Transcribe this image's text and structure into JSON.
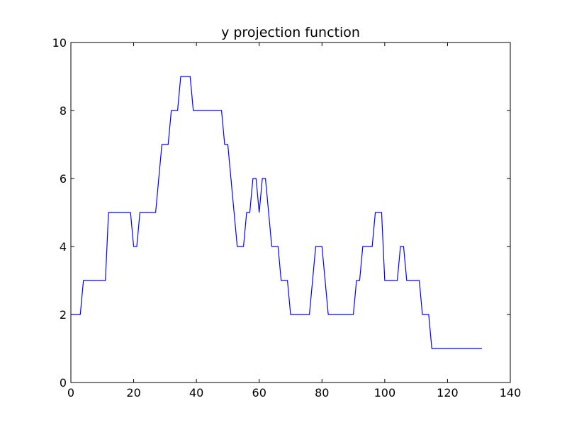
{
  "chart_data": {
    "type": "line",
    "title": "y projection function",
    "xlabel": "",
    "ylabel": "",
    "xlim": [
      0,
      140
    ],
    "ylim": [
      0,
      10
    ],
    "xticks": [
      0,
      20,
      40,
      60,
      80,
      100,
      120,
      140
    ],
    "yticks": [
      0,
      2,
      4,
      6,
      8,
      10
    ],
    "grid": false,
    "series": [
      {
        "color": "#0000ff",
        "x": [
          0,
          3,
          4,
          5,
          11,
          12,
          19,
          20,
          21,
          22,
          26,
          27,
          28,
          29,
          31,
          32,
          34,
          35,
          38,
          39,
          47,
          48,
          49,
          50,
          51,
          52,
          53,
          54,
          55,
          56,
          57,
          58,
          59,
          60,
          61,
          62,
          63,
          64,
          65,
          66,
          67,
          68,
          69,
          70,
          76,
          77,
          78,
          79,
          80,
          81,
          82,
          90,
          91,
          92,
          93,
          96,
          97,
          99,
          100,
          104,
          105,
          106,
          107,
          111,
          112,
          114,
          115,
          131
        ],
        "y": [
          2,
          2,
          3,
          3,
          3,
          5,
          5,
          4,
          4,
          5,
          5,
          5,
          6,
          7,
          7,
          8,
          8,
          9,
          9,
          8,
          8,
          8,
          7,
          7,
          6,
          5,
          4,
          4,
          4,
          5,
          5,
          6,
          6,
          5,
          6,
          6,
          5,
          4,
          4,
          4,
          3,
          3,
          3,
          2,
          2,
          3,
          4,
          4,
          4,
          3,
          2,
          2,
          3,
          3,
          4,
          4,
          5,
          5,
          3,
          3,
          4,
          4,
          3,
          3,
          2,
          2,
          1,
          1
        ]
      }
    ]
  }
}
